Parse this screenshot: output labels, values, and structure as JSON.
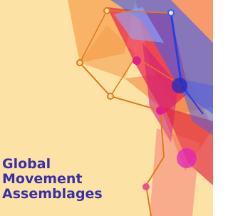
{
  "cover": {
    "title_lines": [
      "Global",
      "Movement",
      "Assemblages"
    ]
  }
}
